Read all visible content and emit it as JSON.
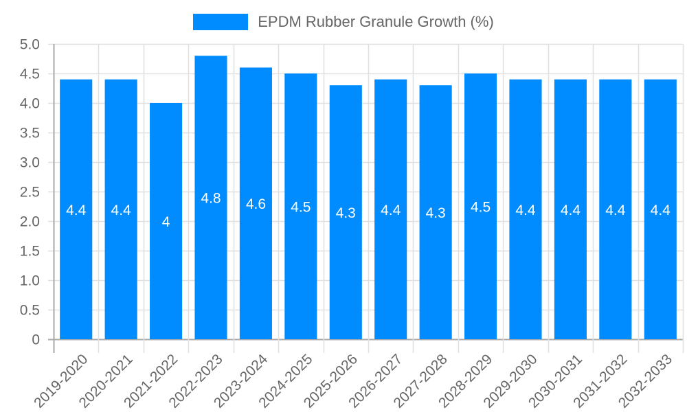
{
  "chart_data": {
    "type": "bar",
    "title": "",
    "legend": [
      {
        "label": "EPDM Rubber Granule Growth (%)",
        "color": "#008CFF"
      }
    ],
    "legend_position": "top",
    "categories": [
      "2019-2020",
      "2020-2021",
      "2021-2022",
      "2022-2023",
      "2023-2024",
      "2024-2025",
      "2025-2026",
      "2026-2027",
      "2027-2028",
      "2028-2029",
      "2029-2030",
      "2030-2031",
      "2031-2032",
      "2032-2033"
    ],
    "series": [
      {
        "name": "EPDM Rubber Granule Growth (%)",
        "values": [
          4.4,
          4.4,
          4,
          4.8,
          4.6,
          4.5,
          4.3,
          4.4,
          4.3,
          4.5,
          4.4,
          4.4,
          4.4,
          4.4
        ],
        "data_labels": [
          "4.4",
          "4.4",
          "4",
          "4.8",
          "4.6",
          "4.5",
          "4.3",
          "4.4",
          "4.3",
          "4.5",
          "4.4",
          "4.4",
          "4.4",
          "4.4"
        ],
        "color": "#008CFF"
      }
    ],
    "xlabel": "",
    "ylabel": "",
    "ylim": [
      0,
      5
    ],
    "y_ticks": [
      "0",
      "0.5",
      "1.0",
      "1.5",
      "2.0",
      "2.5",
      "3.0",
      "3.5",
      "4.0",
      "4.5",
      "5.0"
    ],
    "grid": true,
    "x_tick_rotation": -45
  },
  "colors": {
    "bar": "#008CFF",
    "grid": "#e0e0e0",
    "axis": "#aaaaaa",
    "tick_text": "#666666",
    "data_label": "#ffffff"
  }
}
